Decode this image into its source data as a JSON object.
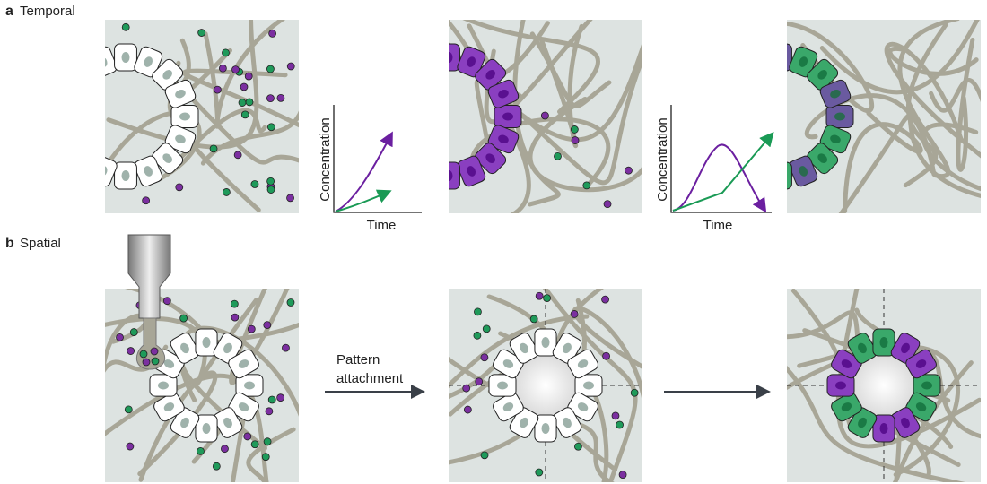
{
  "panel_a": {
    "letter": "a",
    "title": "Temporal"
  },
  "panel_b": {
    "letter": "b",
    "title": "Spatial"
  },
  "graphs": [
    {
      "y_label": "Concentration",
      "x_label": "Time"
    },
    {
      "y_label": "Concentration",
      "x_label": "Time"
    }
  ],
  "arrow_label": [
    "Pattern",
    "attachment"
  ]
}
